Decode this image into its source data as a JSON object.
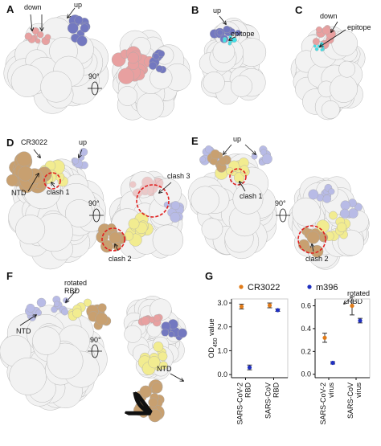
{
  "panels": [
    {
      "label": "A",
      "annotations": [
        "down",
        "up",
        "90°"
      ]
    },
    {
      "label": "B",
      "annotations": [
        "up",
        "epitope"
      ]
    },
    {
      "label": "C",
      "annotations": [
        "down",
        "epitope"
      ]
    },
    {
      "label": "D",
      "annotations": [
        "CR3022",
        "up",
        "NTD",
        "clash 1",
        "90°",
        "clash 3",
        "clash 2"
      ]
    },
    {
      "label": "E",
      "annotations": [
        "up",
        "clash 1",
        "90°",
        "clash 2"
      ]
    },
    {
      "label": "F",
      "annotations": [
        "rotated RBD",
        "NTD",
        "90°",
        "rotated RBD",
        "NTD"
      ]
    },
    {
      "label": "G",
      "annotations": []
    }
  ],
  "chart_data": [
    {
      "type": "dot",
      "ylabel": [
        "OD",
        "450",
        " value"
      ],
      "categories": [
        [
          "SARS-CoV-2",
          "RBD"
        ],
        [
          "SARS-CoV",
          "RBD"
        ]
      ],
      "series": [
        {
          "name": "CR3022",
          "color": "#e07b1a",
          "values": [
            2.85,
            2.9
          ],
          "errors": [
            0.1,
            0.1
          ]
        },
        {
          "name": "m396",
          "color": "#1f2fbf",
          "values": [
            0.3,
            2.7
          ],
          "errors": [
            0.1,
            0.05
          ]
        }
      ],
      "ylim": [
        -0.13,
        3.17
      ],
      "yticks": [
        {
          "value": 0,
          "label": "0.0"
        },
        {
          "value": 1,
          "label": "1.0"
        },
        {
          "value": 2,
          "label": "2.0"
        },
        {
          "value": 3,
          "label": "3.0"
        }
      ]
    },
    {
      "type": "dot",
      "categories": [
        [
          "SARS-CoV-2",
          "virus"
        ],
        [
          "SARS-CoV",
          "virus"
        ]
      ],
      "series": [
        {
          "color": "#e07b1a",
          "values": [
            0.32,
            0.6
          ],
          "errors": [
            0.04,
            0.08
          ]
        },
        {
          "color": "#1f2fbf",
          "values": [
            0.1,
            0.47
          ],
          "errors": [
            0.01,
            0.02
          ]
        }
      ],
      "ylim": [
        -0.03,
        0.66
      ],
      "yticks": [
        {
          "value": 0,
          "label": "0.0"
        },
        {
          "value": 0.2,
          "label": "0.2"
        },
        {
          "value": 0.4,
          "label": "0.4"
        },
        {
          "value": 0.6,
          "label": "0.6"
        }
      ]
    }
  ]
}
